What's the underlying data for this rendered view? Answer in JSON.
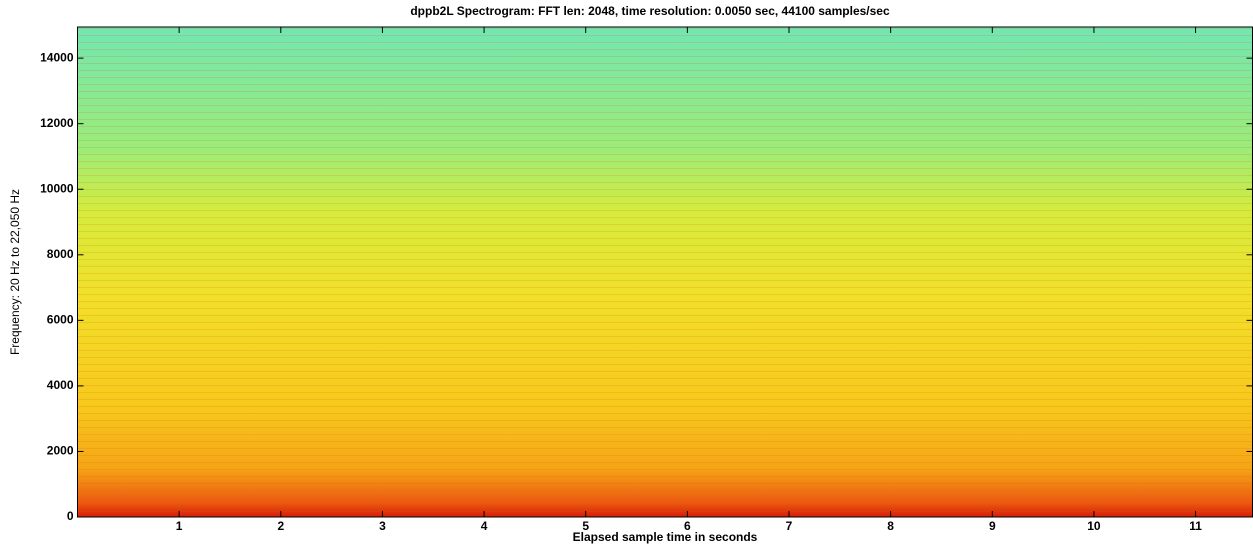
{
  "chart_data": {
    "type": "spectrogram",
    "title": "dppb2L Spectrogram:  FFT len: 2048,  time resolution: 0.0050 sec,  44100 samples/sec",
    "xlabel": "Elapsed sample time in seconds",
    "ylabel": "Frequency: 20 Hz to 22,050 Hz",
    "xlim": [
      0,
      11.56
    ],
    "ylim": [
      0,
      14950
    ],
    "xticks": [
      1,
      2,
      3,
      4,
      5,
      6,
      7,
      8,
      9,
      10,
      11
    ],
    "yticks": [
      0,
      2000,
      4000,
      6000,
      8000,
      10000,
      12000,
      14000
    ]
  }
}
